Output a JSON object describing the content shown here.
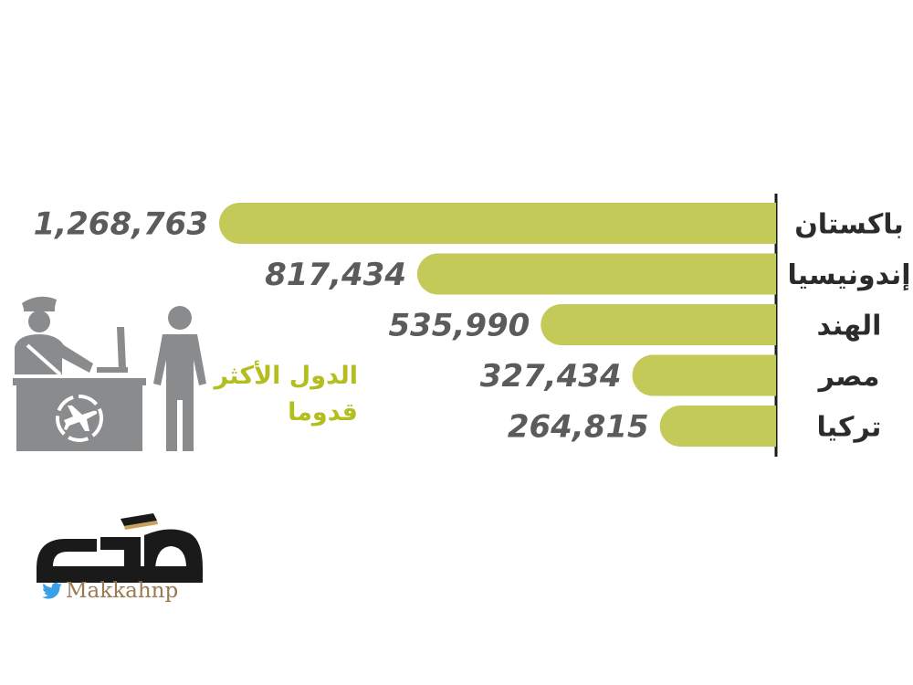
{
  "chart_data": {
    "type": "bar",
    "orientation": "horizontal",
    "categories": [
      "باكستان",
      "إندونيسيا",
      "الهند",
      "مصر",
      "تركيا"
    ],
    "values": [
      1268763,
      817434,
      535990,
      327434,
      264815
    ],
    "value_labels": [
      "1,268,763",
      "817,434",
      "535,990",
      "327,434",
      "264,815"
    ],
    "bar_color": "#c4ca57",
    "grid": false,
    "legend": "none"
  },
  "caption": {
    "line1": "الدول الأكثر",
    "line2": "قدوما",
    "color": "#b3be1f"
  },
  "illustration": {
    "icon": "passport-control-officer-and-traveler-icon",
    "color": "#8a8b8d"
  },
  "branding": {
    "logo_text": "مكة",
    "twitter_handle": "Makkahnp",
    "twitter_icon": "twitter-bird-icon",
    "twitter_color": "#3aa0e8"
  }
}
